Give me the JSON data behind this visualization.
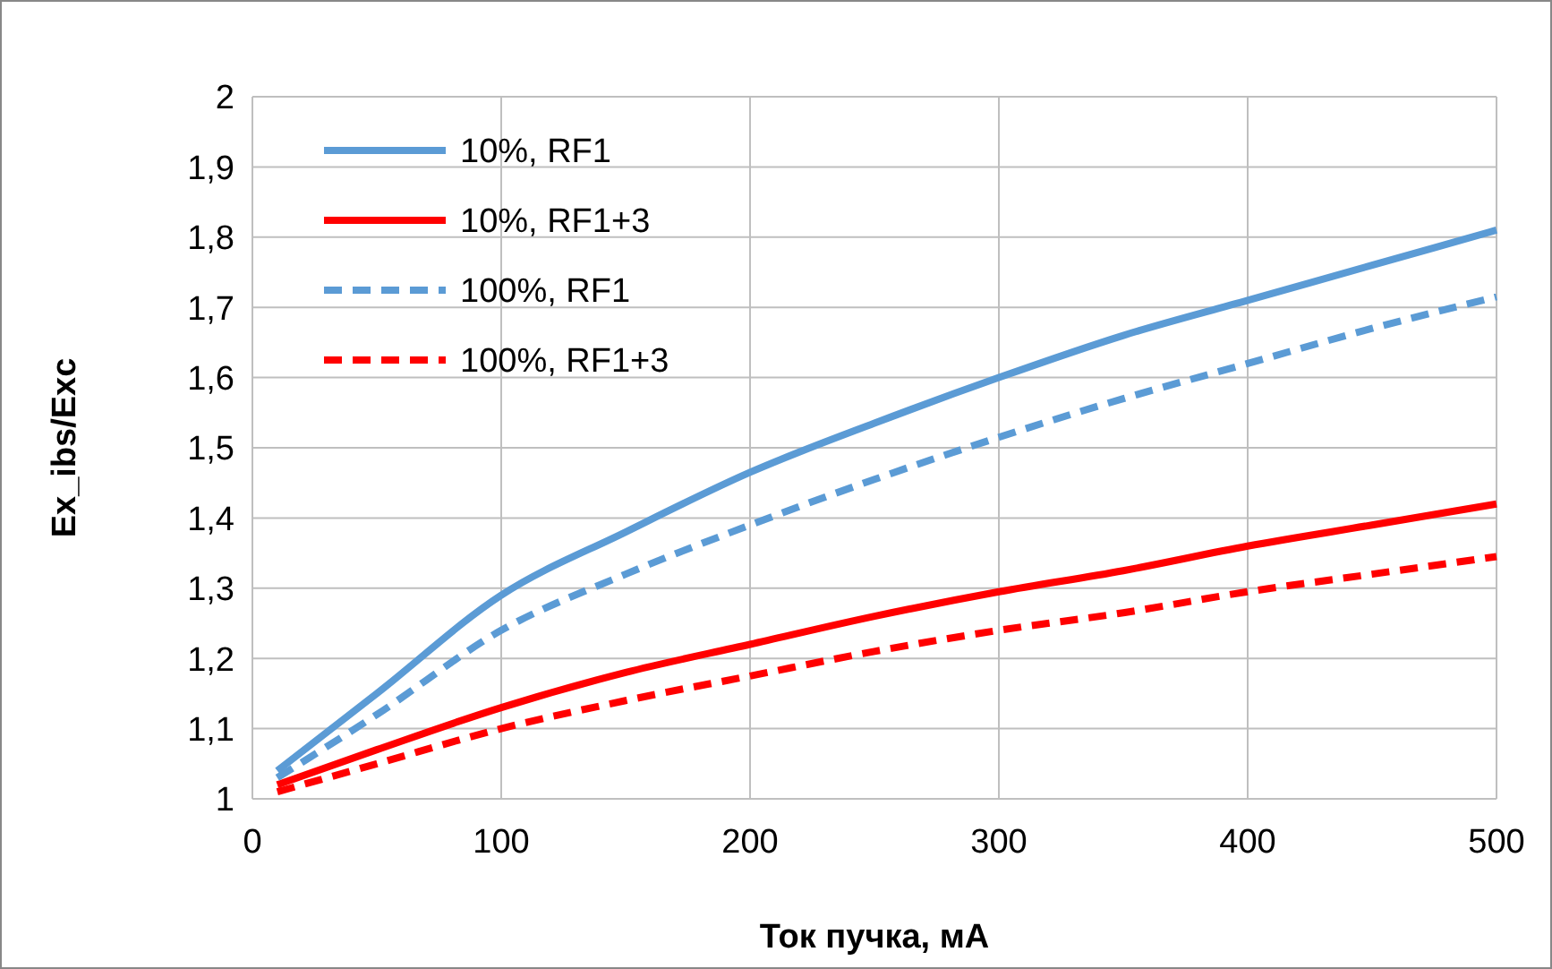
{
  "chart_data": {
    "type": "line",
    "xlabel": "Ток пучка, мА",
    "ylabel": "Ex_ibs/Exc",
    "xlim": [
      0,
      500
    ],
    "xticks": [
      0,
      100,
      200,
      300,
      400,
      500
    ],
    "ylim": [
      1,
      2
    ],
    "yticks": [
      1,
      {
        "value": 1.1,
        "label": "1,1"
      },
      {
        "value": 1.2,
        "label": "1,2"
      },
      {
        "value": 1.3,
        "label": "1,3"
      },
      {
        "value": 1.4,
        "label": "1,4"
      },
      {
        "value": 1.5,
        "label": "1,5"
      },
      {
        "value": 1.6,
        "label": "1,6"
      },
      {
        "value": 1.7,
        "label": "1,7"
      },
      {
        "value": 1.8,
        "label": "1,8"
      },
      {
        "value": 1.9,
        "label": "1,9"
      },
      2
    ],
    "grid": true,
    "legend": "top left",
    "marker": "none",
    "x": [
      10,
      50,
      100,
      150,
      200,
      250,
      300,
      350,
      400,
      450,
      500
    ],
    "series": [
      {
        "name": "10%, RF1",
        "color": "#5b9bd5",
        "line_style": "solid",
        "values": [
          1.04,
          1.15,
          1.29,
          1.38,
          1.465,
          1.535,
          1.6,
          1.66,
          1.71,
          1.76,
          1.81
        ]
      },
      {
        "name": "10%, RF1+3",
        "color": "#ff0000",
        "line_style": "solid",
        "values": [
          1.02,
          1.07,
          1.13,
          1.18,
          1.22,
          1.26,
          1.295,
          1.325,
          1.36,
          1.39,
          1.42
        ]
      },
      {
        "name": "100%, RF1",
        "color": "#5b9bd5",
        "line_style": "dashed",
        "values": [
          1.03,
          1.12,
          1.24,
          1.32,
          1.39,
          1.455,
          1.515,
          1.57,
          1.62,
          1.67,
          1.715
        ]
      },
      {
        "name": "100%, RF1+3",
        "color": "#ff0000",
        "line_style": "dashed",
        "values": [
          1.01,
          1.05,
          1.1,
          1.14,
          1.175,
          1.21,
          1.24,
          1.265,
          1.295,
          1.32,
          1.345
        ]
      }
    ]
  }
}
